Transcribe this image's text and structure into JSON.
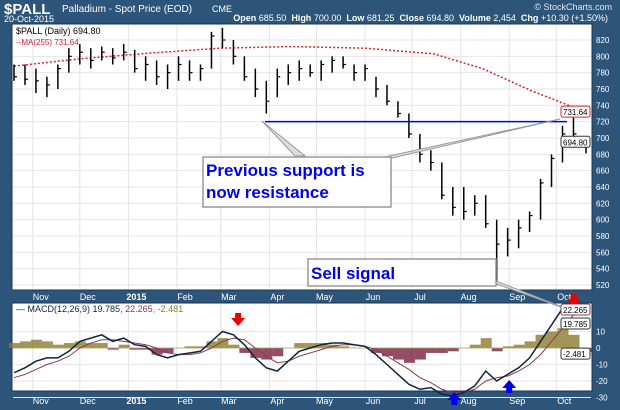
{
  "header": {
    "symbol": "$PALL",
    "name": "Palladium - Spot Price (EOD)",
    "exchange": "CME",
    "date": "20-Oct-2015",
    "brand": "© StockCharts.com",
    "open_label": "Open",
    "open": "685.50",
    "high_label": "High",
    "high": "700.00",
    "low_label": "Low",
    "low": "681.25",
    "close_label": "Close",
    "close": "694.80",
    "volume_label": "Volume",
    "volume": "2,454",
    "chg_label": "Chg",
    "chg": "+10.30 (+1.50%)"
  },
  "colors": {
    "background": "#2d5479",
    "price": "#000000",
    "ma": "#d8232a",
    "support_line": "#0000ee",
    "macd": "#0b2540",
    "signal": "#8a3a4a",
    "hist_pos": "#8c7a2a",
    "hist_neg": "#7a2040",
    "annotation_text": "#0000ee",
    "sell_arrow": "#ee0000",
    "buy_arrow": "#0000ee"
  },
  "chart_data": [
    {
      "type": "ohlc",
      "legend": {
        "price": "$PALL (Daily) 694.80",
        "ma": "MA(255) 731.64"
      },
      "ylim": [
        510,
        835
      ],
      "yticks": [
        520,
        540,
        560,
        580,
        600,
        620,
        640,
        660,
        680,
        700,
        720,
        740,
        760,
        780,
        800,
        820
      ],
      "xticks": [
        "Nov",
        "Dec",
        "2015",
        "Feb",
        "Mar",
        "Apr",
        "May",
        "Jun",
        "Jul",
        "Aug",
        "Sep",
        "Oct"
      ],
      "grid": true,
      "last_price_label": "694.80",
      "ma_label": "731.64",
      "columns": [
        "date",
        "high",
        "low",
        "close"
      ],
      "bars": [
        [
          "2014-10-20",
          790,
          770,
          775
        ],
        [
          "2014-10-27",
          790,
          765,
          772
        ],
        [
          "2014-11-03",
          785,
          755,
          770
        ],
        [
          "2014-11-10",
          775,
          750,
          765
        ],
        [
          "2014-11-17",
          790,
          760,
          785
        ],
        [
          "2014-11-24",
          810,
          780,
          800
        ],
        [
          "2014-12-01",
          815,
          790,
          805
        ],
        [
          "2014-12-08",
          810,
          785,
          795
        ],
        [
          "2014-12-15",
          812,
          795,
          805
        ],
        [
          "2014-12-22",
          810,
          790,
          798
        ],
        [
          "2014-12-29",
          815,
          795,
          805
        ],
        [
          "2015-01-05",
          808,
          780,
          785
        ],
        [
          "2015-01-12",
          800,
          770,
          790
        ],
        [
          "2015-01-19",
          795,
          765,
          775
        ],
        [
          "2015-01-26",
          790,
          760,
          780
        ],
        [
          "2015-02-02",
          800,
          770,
          790
        ],
        [
          "2015-02-09",
          795,
          770,
          780
        ],
        [
          "2015-02-16",
          790,
          770,
          785
        ],
        [
          "2015-02-23",
          830,
          785,
          825
        ],
        [
          "2015-03-02",
          835,
          810,
          820
        ],
        [
          "2015-03-09",
          820,
          790,
          800
        ],
        [
          "2015-03-16",
          800,
          770,
          775
        ],
        [
          "2015-03-23",
          785,
          750,
          760
        ],
        [
          "2015-03-30",
          770,
          730,
          745
        ],
        [
          "2015-04-06",
          785,
          750,
          775
        ],
        [
          "2015-04-13",
          790,
          765,
          780
        ],
        [
          "2015-04-20",
          795,
          770,
          785
        ],
        [
          "2015-04-27",
          790,
          775,
          780
        ],
        [
          "2015-05-04",
          795,
          770,
          790
        ],
        [
          "2015-05-11",
          800,
          780,
          795
        ],
        [
          "2015-05-18",
          800,
          785,
          790
        ],
        [
          "2015-05-25",
          790,
          770,
          780
        ],
        [
          "2015-06-01",
          790,
          770,
          785
        ],
        [
          "2015-06-08",
          775,
          750,
          760
        ],
        [
          "2015-06-15",
          765,
          740,
          745
        ],
        [
          "2015-06-22",
          745,
          725,
          730
        ],
        [
          "2015-06-29",
          730,
          700,
          705
        ],
        [
          "2015-07-06",
          705,
          670,
          680
        ],
        [
          "2015-07-13",
          685,
          660,
          670
        ],
        [
          "2015-07-20",
          670,
          625,
          630
        ],
        [
          "2015-07-27",
          640,
          605,
          615
        ],
        [
          "2015-08-03",
          640,
          600,
          610
        ],
        [
          "2015-08-10",
          630,
          605,
          620
        ],
        [
          "2015-08-17",
          630,
          590,
          595
        ],
        [
          "2015-08-24",
          600,
          520,
          570
        ],
        [
          "2015-08-31",
          590,
          555,
          575
        ],
        [
          "2015-09-07",
          600,
          565,
          590
        ],
        [
          "2015-09-14",
          610,
          585,
          605
        ],
        [
          "2015-09-21",
          650,
          600,
          645
        ],
        [
          "2015-09-28",
          680,
          640,
          675
        ],
        [
          "2015-10-05",
          715,
          670,
          705
        ],
        [
          "2015-10-12",
          725,
          695,
          705
        ],
        [
          "2015-10-20",
          700,
          681.25,
          694.8
        ]
      ],
      "ma255": [
        [
          "2014-10-20",
          788
        ],
        [
          "2014-12-01",
          797
        ],
        [
          "2015-01-15",
          804
        ],
        [
          "2015-03-01",
          810
        ],
        [
          "2015-04-15",
          812
        ],
        [
          "2015-06-01",
          810
        ],
        [
          "2015-07-15",
          803
        ],
        [
          "2015-08-15",
          785
        ],
        [
          "2015-09-15",
          758
        ],
        [
          "2015-10-20",
          731.64
        ]
      ],
      "support_level": 720,
      "annotations": [
        "Previous support is now resistance",
        "Sell signal"
      ]
    },
    {
      "type": "line",
      "legend": {
        "macd": "MACD(12,26,9) 19.785",
        "signal": "22.265",
        "hist": "-2.481"
      },
      "ylim": [
        -32,
        27
      ],
      "yticks": [
        10,
        0,
        -10,
        -20,
        -30
      ],
      "xticks": [
        "Nov",
        "Dec",
        "2015",
        "Feb",
        "Mar",
        "Apr",
        "May",
        "Jun",
        "Jul",
        "Aug",
        "Sep",
        "Oct"
      ],
      "grid": true,
      "value_labels": [
        "22.265",
        "19.785",
        "-2.481"
      ],
      "columns": [
        "date",
        "macd",
        "signal"
      ],
      "rows": [
        [
          "2014-10-20",
          -15,
          -18
        ],
        [
          "2014-10-27",
          -12,
          -16
        ],
        [
          "2014-11-03",
          -8,
          -13
        ],
        [
          "2014-11-10",
          -6,
          -10
        ],
        [
          "2014-11-17",
          -6,
          -8
        ],
        [
          "2014-11-24",
          -2,
          -5
        ],
        [
          "2014-12-01",
          4,
          0
        ],
        [
          "2014-12-08",
          6,
          3
        ],
        [
          "2014-12-15",
          8,
          5
        ],
        [
          "2014-12-22",
          4,
          5
        ],
        [
          "2014-12-29",
          6,
          4
        ],
        [
          "2015-01-05",
          2,
          3
        ],
        [
          "2015-01-12",
          1,
          2
        ],
        [
          "2015-01-19",
          -4,
          0
        ],
        [
          "2015-01-26",
          -6,
          -3
        ],
        [
          "2015-02-02",
          -4,
          -4
        ],
        [
          "2015-02-09",
          -3,
          -4
        ],
        [
          "2015-02-16",
          -2,
          -3
        ],
        [
          "2015-02-23",
          4,
          0
        ],
        [
          "2015-03-02",
          10,
          4
        ],
        [
          "2015-03-09",
          8,
          6
        ],
        [
          "2015-03-16",
          2,
          5
        ],
        [
          "2015-03-23",
          -6,
          0
        ],
        [
          "2015-03-30",
          -12,
          -5
        ],
        [
          "2015-04-06",
          -14,
          -9
        ],
        [
          "2015-04-13",
          -8,
          -8
        ],
        [
          "2015-04-20",
          -2,
          -5
        ],
        [
          "2015-04-27",
          0,
          -3
        ],
        [
          "2015-05-04",
          2,
          -1
        ],
        [
          "2015-05-11",
          3,
          1
        ],
        [
          "2015-05-18",
          3,
          2
        ],
        [
          "2015-05-25",
          2,
          2
        ],
        [
          "2015-06-01",
          1,
          1
        ],
        [
          "2015-06-08",
          -4,
          -1
        ],
        [
          "2015-06-15",
          -10,
          -5
        ],
        [
          "2015-06-22",
          -16,
          -9
        ],
        [
          "2015-06-29",
          -22,
          -13
        ],
        [
          "2015-07-06",
          -25,
          -18
        ],
        [
          "2015-07-13",
          -24,
          -21
        ],
        [
          "2015-07-20",
          -28,
          -25
        ],
        [
          "2015-07-27",
          -29,
          -27
        ],
        [
          "2015-08-03",
          -27,
          -27
        ],
        [
          "2015-08-10",
          -23,
          -25
        ],
        [
          "2015-08-17",
          -14,
          -20
        ],
        [
          "2015-08-24",
          -20,
          -18
        ],
        [
          "2015-08-31",
          -16,
          -17
        ],
        [
          "2015-09-07",
          -12,
          -14
        ],
        [
          "2015-09-14",
          -6,
          -10
        ],
        [
          "2015-09-21",
          4,
          -4
        ],
        [
          "2015-09-28",
          14,
          4
        ],
        [
          "2015-10-05",
          24,
          12
        ],
        [
          "2015-10-12",
          28,
          20
        ],
        [
          "2015-10-20",
          19.785,
          22.265
        ]
      ],
      "signals": {
        "sell": [
          "2015-03-12",
          "2015-10-16"
        ],
        "buy": [
          "2015-07-28",
          "2015-09-01"
        ]
      }
    }
  ]
}
